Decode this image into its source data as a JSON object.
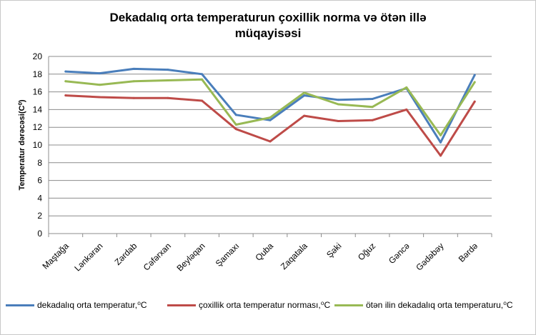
{
  "chart_data": {
    "type": "line",
    "title_lines": [
      "Dekadalıq orta temperaturun çoxillik   norma və ötən illə",
      "müqayisəsi"
    ],
    "ylabel": "Temperatur dərəcəsi(C⁰)",
    "xlabel": "",
    "ylim": [
      0,
      20
    ],
    "yticks": [
      "0",
      "2",
      "4",
      "6",
      "8",
      "10",
      "12",
      "14",
      "16",
      "18",
      "20"
    ],
    "grid": true,
    "legend_position": "bottom",
    "categories": [
      "Maştağa",
      "Lənkəran",
      "Zərdab",
      "Cəfərxan",
      "Beyləqan",
      "Şamaxı",
      "Quba",
      "Zaqatala",
      "Şəki",
      "Oğuz",
      "Gəncə",
      "Gədəbəy",
      "Bərdə"
    ],
    "series": [
      {
        "name": "dekadalıq orta temperatur,⁰C",
        "color": "#4a7ebb",
        "values": [
          18.3,
          18.1,
          18.6,
          18.5,
          18.0,
          13.4,
          12.8,
          15.6,
          15.1,
          15.2,
          16.4,
          10.3,
          17.9
        ]
      },
      {
        "name": "çoxillik orta temperatur norması,⁰C",
        "color": "#be4b48",
        "values": [
          15.6,
          15.4,
          15.3,
          15.3,
          15.0,
          11.8,
          10.4,
          13.3,
          12.7,
          12.8,
          14.0,
          8.8,
          14.9
        ]
      },
      {
        "name": "ötən ilin dekadalıq orta temperaturu,⁰C",
        "color": "#98b954",
        "values": [
          17.2,
          16.8,
          17.2,
          17.3,
          17.4,
          12.3,
          13.1,
          15.9,
          14.6,
          14.3,
          16.5,
          11.1,
          17.1
        ]
      }
    ]
  }
}
